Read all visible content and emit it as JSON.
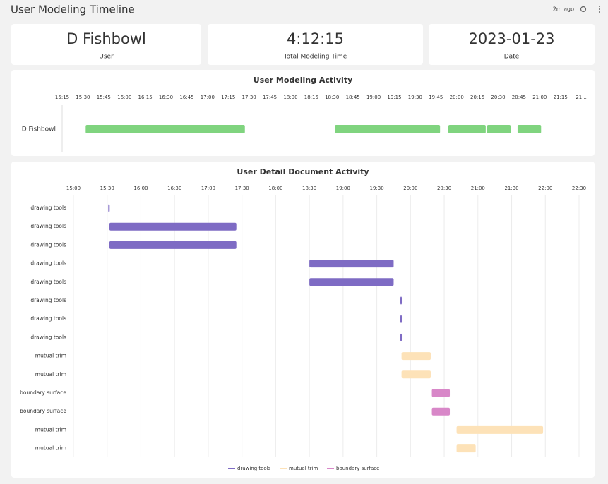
{
  "header": {
    "title": "User Modeling Timeline",
    "updated": "2m ago"
  },
  "cards": [
    {
      "value": "D Fishbowl",
      "label": "User"
    },
    {
      "value": "4:12:15",
      "label": "Total Modeling Time"
    },
    {
      "value": "2023-01-23",
      "label": "Date"
    }
  ],
  "chart_data": [
    {
      "type": "timeline",
      "title": "User Modeling Activity",
      "categories": [
        "D Fishbowl"
      ],
      "series": [
        {
          "color": "#80d47f",
          "starts": [
            [
              932,
              1112,
              1194,
              1222,
              1244
            ]
          ],
          "ends": [
            [
              1047,
              1188,
              1221,
              1239,
              1261
            ]
          ]
        }
      ],
      "xlim": [
        915,
        1293
      ],
      "grid": false,
      "xticks": [
        {
          "value": 915,
          "label": "15:15"
        },
        {
          "value": 930,
          "label": "15:30"
        },
        {
          "value": 945,
          "label": "15:45"
        },
        {
          "value": 960,
          "label": "16:00"
        },
        {
          "value": 975,
          "label": "16:15"
        },
        {
          "value": 990,
          "label": "16:30"
        },
        {
          "value": 1005,
          "label": "16:45"
        },
        {
          "value": 1020,
          "label": "17:00"
        },
        {
          "value": 1035,
          "label": "17:15"
        },
        {
          "value": 1050,
          "label": "17:30"
        },
        {
          "value": 1065,
          "label": "17:45"
        },
        {
          "value": 1080,
          "label": "18:00"
        },
        {
          "value": 1095,
          "label": "18:15"
        },
        {
          "value": 1110,
          "label": "18:30"
        },
        {
          "value": 1125,
          "label": "18:45"
        },
        {
          "value": 1140,
          "label": "19:00"
        },
        {
          "value": 1155,
          "label": "19:15"
        },
        {
          "value": 1170,
          "label": "19:30"
        },
        {
          "value": 1185,
          "label": "19:45"
        },
        {
          "value": 1200,
          "label": "20:00"
        },
        {
          "value": 1215,
          "label": "20:15"
        },
        {
          "value": 1230,
          "label": "20:30"
        },
        {
          "value": 1245,
          "label": "20:45"
        },
        {
          "value": 1260,
          "label": "21:00"
        },
        {
          "value": 1275,
          "label": "21:15"
        },
        {
          "value": 1290,
          "label": "21..."
        }
      ]
    },
    {
      "type": "timeline",
      "title": "User Detail Document Activity",
      "categories": [
        "drawing tools",
        "drawing tools",
        "drawing tools",
        "drawing tools",
        "drawing tools",
        "drawing tools",
        "drawing tools",
        "drawing tools",
        "mutual trim",
        "mutual trim",
        "boundary surface",
        "boundary surface",
        "mutual trim",
        "mutual trim"
      ],
      "series": [
        {
          "name": "drawing tools",
          "color": "#7e6bc4",
          "starts": [
            931,
            932,
            932,
            1110,
            1110,
            1191,
            1191,
            1191,
            null,
            null,
            null,
            null,
            null,
            null
          ],
          "ends": [
            932,
            1045,
            1045,
            1185,
            1185,
            1192,
            1192,
            1192,
            null,
            null,
            null,
            null,
            null,
            null
          ]
        },
        {
          "name": "mutual trim",
          "color": "#fde2b8",
          "starts": [
            null,
            null,
            null,
            null,
            null,
            null,
            null,
            null,
            1192,
            1192,
            null,
            null,
            1241,
            1241
          ],
          "ends": [
            null,
            null,
            null,
            null,
            null,
            null,
            null,
            null,
            1218,
            1218,
            null,
            null,
            1318,
            1258
          ]
        },
        {
          "name": "boundary surface",
          "color": "#d887c8",
          "starts": [
            null,
            null,
            null,
            null,
            null,
            null,
            null,
            null,
            null,
            null,
            1219,
            1219,
            null,
            null
          ],
          "ends": [
            null,
            null,
            null,
            null,
            null,
            null,
            null,
            null,
            null,
            null,
            1235,
            1235,
            null,
            null
          ]
        }
      ],
      "xlim": [
        900,
        1350
      ],
      "grid": true,
      "legend": "bottom",
      "xticks": [
        {
          "value": 900,
          "label": "15:00"
        },
        {
          "value": 930,
          "label": "15:30"
        },
        {
          "value": 960,
          "label": "16:00"
        },
        {
          "value": 990,
          "label": "16:30"
        },
        {
          "value": 1020,
          "label": "17:00"
        },
        {
          "value": 1050,
          "label": "17:30"
        },
        {
          "value": 1080,
          "label": "18:00"
        },
        {
          "value": 1110,
          "label": "18:30"
        },
        {
          "value": 1140,
          "label": "19:00"
        },
        {
          "value": 1170,
          "label": "19:30"
        },
        {
          "value": 1200,
          "label": "20:00"
        },
        {
          "value": 1230,
          "label": "20:30"
        },
        {
          "value": 1260,
          "label": "21:00"
        },
        {
          "value": 1290,
          "label": "21:30"
        },
        {
          "value": 1320,
          "label": "22:00"
        },
        {
          "value": 1350,
          "label": "22:30"
        }
      ]
    }
  ]
}
